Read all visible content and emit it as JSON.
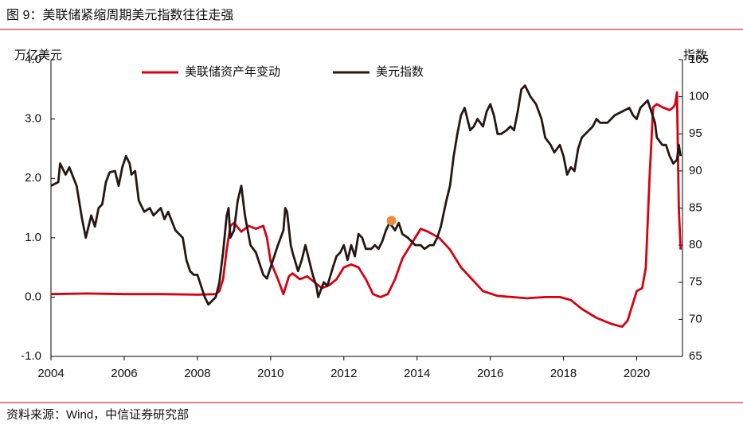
{
  "chart_data": {
    "type": "line",
    "title": "图 9：美联储紧缩周期美元指数往往走强",
    "source": "资料来源：Wind，中信证券研究部",
    "y_label": "万亿美元",
    "y2_label": "指数",
    "xlim": [
      2004,
      2021.25
    ],
    "xticks": [
      2004,
      2006,
      2008,
      2010,
      2012,
      2014,
      2016,
      2018,
      2020
    ],
    "ylim": [
      -1,
      4
    ],
    "yticks": [
      {
        "value": -1,
        "label": "-1.0"
      },
      {
        "value": 0,
        "label": "0.0"
      },
      {
        "value": 1,
        "label": "1.0"
      },
      {
        "value": 2,
        "label": "2.0"
      },
      {
        "value": 3,
        "label": "3.0"
      },
      {
        "value": 4,
        "label": "4.0"
      }
    ],
    "y2lim": [
      65,
      105
    ],
    "y2ticks": [
      65,
      70,
      75,
      80,
      85,
      90,
      95,
      100,
      105
    ],
    "series": [
      {
        "name": "美联储资产年变动",
        "color": "#d7000f",
        "x": [
          2004.0,
          2005.0,
          2006.0,
          2007.0,
          2008.0,
          2008.5,
          2008.6,
          2008.7,
          2008.8,
          2008.9,
          2009.0,
          2009.2,
          2009.4,
          2009.6,
          2009.8,
          2009.9,
          2010.0,
          2010.2,
          2010.35,
          2010.5,
          2010.6,
          2010.8,
          2011.0,
          2011.2,
          2011.4,
          2011.6,
          2011.8,
          2012.0,
          2012.2,
          2012.4,
          2012.6,
          2012.8,
          2013.0,
          2013.2,
          2013.4,
          2013.6,
          2013.9,
          2014.1,
          2014.3,
          2014.6,
          2014.9,
          2015.2,
          2015.5,
          2015.8,
          2016.2,
          2016.6,
          2017.0,
          2017.5,
          2017.9,
          2018.2,
          2018.5,
          2018.9,
          2019.3,
          2019.6,
          2019.75,
          2019.9,
          2020.0,
          2020.15,
          2020.25,
          2020.35,
          2020.45,
          2020.55,
          2020.7,
          2020.9,
          2021.0,
          2021.05,
          2021.1,
          2021.15,
          2021.2
        ],
        "values": [
          0.05,
          0.06,
          0.05,
          0.05,
          0.04,
          0.05,
          0.1,
          0.3,
          0.8,
          1.2,
          1.25,
          1.1,
          1.2,
          1.15,
          1.2,
          1.0,
          0.6,
          0.3,
          0.05,
          0.35,
          0.4,
          0.3,
          0.35,
          0.25,
          0.15,
          0.2,
          0.3,
          0.5,
          0.55,
          0.5,
          0.3,
          0.05,
          0.0,
          0.05,
          0.3,
          0.65,
          0.95,
          1.15,
          1.1,
          1.0,
          0.8,
          0.5,
          0.3,
          0.1,
          0.02,
          0.0,
          -0.02,
          0.0,
          0.0,
          -0.05,
          -0.2,
          -0.35,
          -0.45,
          -0.5,
          -0.4,
          -0.1,
          0.1,
          0.15,
          0.5,
          2.0,
          3.2,
          3.25,
          3.2,
          3.15,
          3.2,
          3.25,
          3.45,
          1.5,
          0.8
        ]
      },
      {
        "name": "美元指数",
        "color": "#231815",
        "axis": "y2",
        "x": [
          2004.0,
          2004.2,
          2004.25,
          2004.4,
          2004.5,
          2004.7,
          2004.85,
          2004.95,
          2005.1,
          2005.2,
          2005.3,
          2005.4,
          2005.5,
          2005.6,
          2005.75,
          2005.85,
          2005.95,
          2006.05,
          2006.15,
          2006.2,
          2006.3,
          2006.4,
          2006.55,
          2006.7,
          2006.8,
          2006.9,
          2007.0,
          2007.1,
          2007.2,
          2007.4,
          2007.5,
          2007.6,
          2007.7,
          2007.8,
          2007.9,
          2008.0,
          2008.2,
          2008.3,
          2008.4,
          2008.5,
          2008.6,
          2008.7,
          2008.8,
          2008.85,
          2008.9,
          2009.0,
          2009.1,
          2009.2,
          2009.3,
          2009.45,
          2009.6,
          2009.8,
          2009.9,
          2010.0,
          2010.2,
          2010.35,
          2010.4,
          2010.45,
          2010.55,
          2010.6,
          2010.75,
          2010.85,
          2010.95,
          2011.05,
          2011.15,
          2011.25,
          2011.3,
          2011.45,
          2011.55,
          2011.7,
          2011.8,
          2011.9,
          2012.0,
          2012.1,
          2012.2,
          2012.3,
          2012.4,
          2012.5,
          2012.6,
          2012.75,
          2012.85,
          2012.95,
          2013.05,
          2013.15,
          2013.25,
          2013.4,
          2013.5,
          2013.6,
          2013.75,
          2013.85,
          2013.95,
          2014.1,
          2014.2,
          2014.35,
          2014.45,
          2014.55,
          2014.65,
          2014.8,
          2014.9,
          2015.0,
          2015.1,
          2015.2,
          2015.3,
          2015.4,
          2015.45,
          2015.55,
          2015.65,
          2015.8,
          2015.9,
          2016.0,
          2016.1,
          2016.2,
          2016.3,
          2016.45,
          2016.55,
          2016.65,
          2016.75,
          2016.85,
          2016.95,
          2017.1,
          2017.25,
          2017.4,
          2017.5,
          2017.65,
          2017.75,
          2017.9,
          2018.0,
          2018.1,
          2018.2,
          2018.3,
          2018.4,
          2018.5,
          2018.6,
          2018.8,
          2018.9,
          2019.0,
          2019.2,
          2019.4,
          2019.6,
          2019.8,
          2019.9,
          2020.0,
          2020.1,
          2020.2,
          2020.3,
          2020.4,
          2020.5,
          2020.55,
          2020.7,
          2020.8,
          2020.9,
          2021.0,
          2021.1,
          2021.15,
          2021.2
        ],
        "values": [
          88,
          88.5,
          91,
          89.5,
          90.5,
          88,
          83.5,
          81,
          84,
          82.5,
          85,
          85.5,
          88.5,
          89.8,
          90,
          88,
          90.5,
          92,
          91,
          89.5,
          90,
          86,
          84.5,
          85,
          84,
          84.5,
          85,
          83.5,
          84.5,
          82,
          81.5,
          81,
          78,
          76.5,
          76,
          76,
          73,
          72,
          72.5,
          73,
          75,
          79,
          84,
          85,
          81,
          82,
          86,
          88,
          84,
          80,
          79,
          76,
          75.5,
          77,
          80,
          82,
          85,
          84.5,
          80,
          79,
          76.5,
          78,
          80,
          78,
          76,
          74.5,
          73,
          75,
          74.5,
          77,
          78.5,
          79,
          80,
          78,
          80,
          78.5,
          81.5,
          81,
          79.5,
          79.5,
          80,
          79.5,
          80.5,
          82,
          83,
          82,
          83,
          81.5,
          81,
          80.5,
          80,
          80,
          79.5,
          80,
          80,
          81,
          82.5,
          86,
          88,
          92,
          95,
          97.5,
          98.5,
          96.5,
          95.5,
          96,
          97,
          96,
          98,
          99,
          97.5,
          95,
          95,
          95.5,
          96,
          95.5,
          98,
          101,
          101.5,
          100,
          99,
          97,
          94.5,
          93.5,
          92.5,
          93.5,
          92,
          89.5,
          90.5,
          90,
          93,
          94.5,
          95,
          96,
          97,
          96.5,
          96.5,
          97.5,
          98,
          98.5,
          97.5,
          97,
          98.5,
          99,
          99.5,
          98,
          96.5,
          94.5,
          93.5,
          93.5,
          92,
          91,
          91.5,
          93.5,
          92
        ]
      }
    ],
    "highlight_point": {
      "x": 2013.3,
      "value": 83.3,
      "color": "#ee8a3c",
      "axis": "y2"
    },
    "legend_position": "top"
  }
}
